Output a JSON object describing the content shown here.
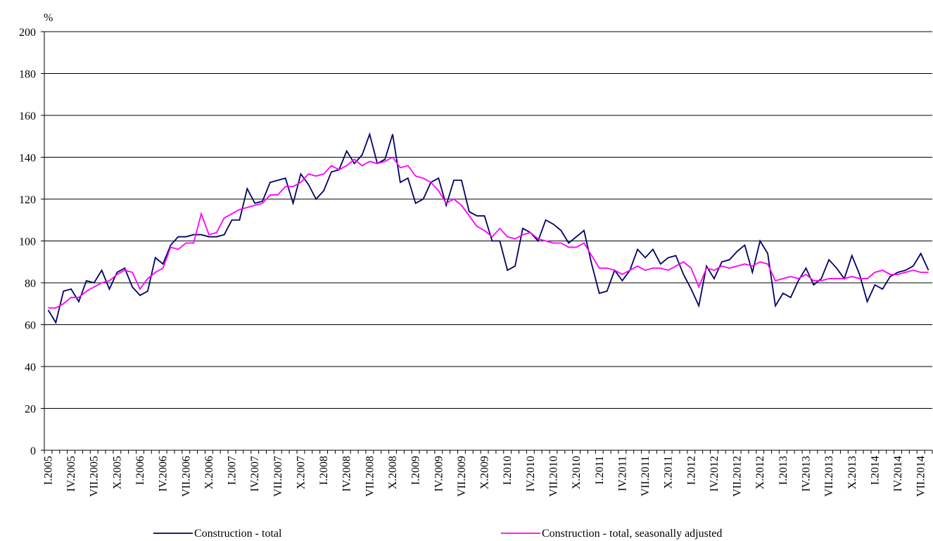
{
  "chart_data": {
    "type": "line",
    "y_label": "%",
    "categories": [
      "I.2005",
      null,
      null,
      "IV.2005",
      null,
      null,
      "VII.2005",
      null,
      null,
      "X.2005",
      null,
      null,
      "I.2006",
      null,
      null,
      "IV.2006",
      null,
      null,
      "VII.2006",
      null,
      null,
      "X.2006",
      null,
      null,
      "I.2007",
      null,
      null,
      "IV.2007",
      null,
      null,
      "VII.2007",
      null,
      null,
      "X.2007",
      null,
      null,
      "I.2008",
      null,
      null,
      "IV.2008",
      null,
      null,
      "VII.2008",
      null,
      null,
      "X.2008",
      null,
      null,
      "I.2009",
      null,
      null,
      "IV.2009",
      null,
      null,
      "VII.2009",
      null,
      null,
      "X.2009",
      null,
      null,
      "I.2010",
      null,
      null,
      "IV.2010",
      null,
      null,
      "VII.2010",
      null,
      null,
      "X.2010",
      null,
      null,
      "I.2011",
      null,
      null,
      "IV.2011",
      null,
      null,
      "VII.2011",
      null,
      null,
      "X.2011",
      null,
      null,
      "I.2012",
      null,
      null,
      "IV.2012",
      null,
      null,
      "VII.2012",
      null,
      null,
      "X.2012",
      null,
      null,
      "I.2013",
      null,
      null,
      "IV.2013",
      null,
      null,
      "VII.2013",
      null,
      null,
      "X.2013",
      null,
      null,
      "I.2014",
      null,
      null,
      "IV.2014",
      null,
      null,
      "VII.2014",
      null
    ],
    "series": [
      {
        "name": "Construction - total",
        "color": "#000066",
        "values": [
          67,
          61,
          76,
          77,
          71,
          81,
          80,
          86,
          77,
          85,
          87,
          78,
          74,
          76,
          92,
          89,
          98,
          102,
          102,
          103,
          103,
          102,
          102,
          103,
          110,
          110,
          125,
          118,
          119,
          128,
          129,
          130,
          118,
          132,
          127,
          120,
          124,
          133,
          134,
          143,
          137,
          141,
          151,
          137,
          139,
          151,
          128,
          130,
          118,
          120,
          128,
          130,
          117,
          129,
          129,
          114,
          112,
          112,
          100,
          100,
          86,
          88,
          106,
          104,
          100,
          110,
          108,
          105,
          99,
          102,
          105,
          89,
          75,
          76,
          86,
          81,
          86,
          96,
          92,
          96,
          89,
          92,
          93,
          84,
          77,
          69,
          88,
          82,
          90,
          91,
          95,
          98,
          85,
          100,
          94,
          69,
          75,
          73,
          81,
          87,
          79,
          82,
          91,
          87,
          82,
          93,
          84,
          71,
          79,
          77,
          83,
          85,
          86,
          88,
          94,
          86
        ]
      },
      {
        "name": "Construction - total, seasonally adjusted",
        "color": "#ff00ff",
        "values": [
          68,
          68,
          70,
          73,
          73,
          76,
          78,
          80,
          81,
          84,
          86,
          85,
          77,
          82,
          85,
          87,
          97,
          96,
          99,
          99,
          113,
          103,
          104,
          111,
          113,
          115,
          116,
          117,
          118,
          122,
          122,
          126,
          126,
          128,
          132,
          131,
          132,
          136,
          134,
          136,
          139,
          136,
          138,
          137,
          138,
          140,
          135,
          136,
          131,
          130,
          128,
          124,
          118,
          120,
          117,
          112,
          107,
          105,
          102,
          106,
          102,
          101,
          103,
          104,
          101,
          100,
          99,
          99,
          97,
          97,
          99,
          93,
          87,
          87,
          86,
          84,
          86,
          88,
          86,
          87,
          87,
          86,
          88,
          90,
          87,
          78,
          87,
          86,
          88,
          87,
          88,
          89,
          88,
          90,
          89,
          81,
          82,
          83,
          82,
          84,
          81,
          81,
          82,
          82,
          82,
          83,
          82,
          82,
          85,
          86,
          84,
          84,
          85,
          86,
          85,
          85
        ]
      }
    ],
    "ylim": [
      0,
      200
    ],
    "yticks": [
      0,
      20,
      40,
      60,
      80,
      100,
      120,
      140,
      160,
      180,
      200
    ],
    "grid": true
  }
}
